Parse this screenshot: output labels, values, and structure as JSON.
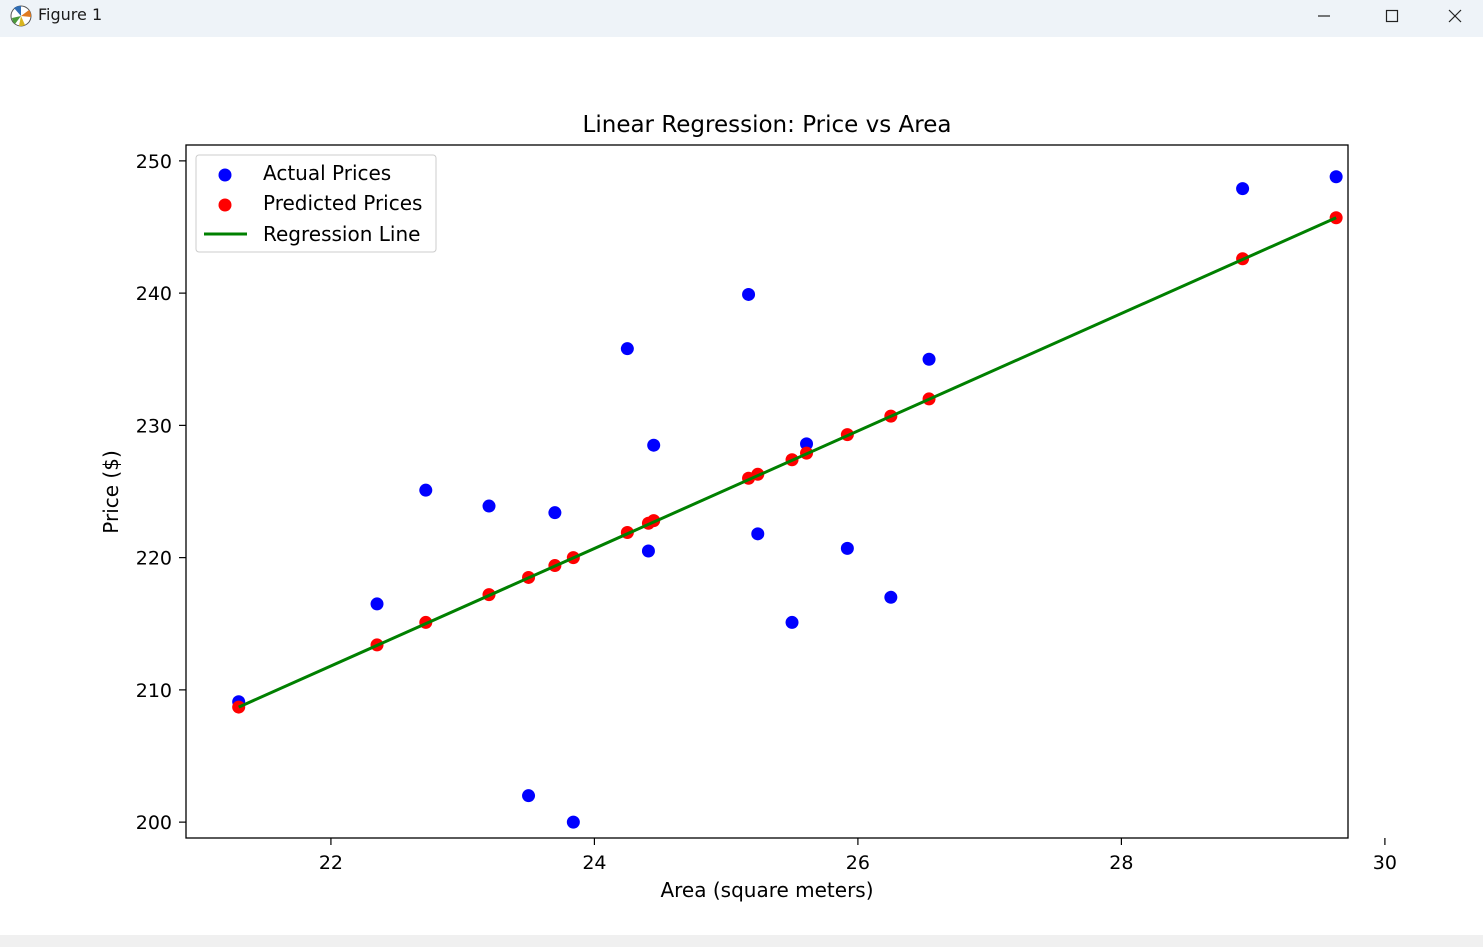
{
  "window": {
    "title": "Figure 1",
    "icon": "matplotlib-icon",
    "controls": [
      "minimize-icon",
      "maximize-icon",
      "close-icon"
    ]
  },
  "chart_data": {
    "type": "scatter",
    "title": "Linear Regression: Price vs Area",
    "xlabel": "Area (square meters)",
    "ylabel": "Price ($)",
    "xlim": [
      20.9,
      29.72
    ],
    "ylim": [
      198.8,
      251.2
    ],
    "xticks": [
      22,
      24,
      26,
      28,
      30
    ],
    "yticks": [
      200,
      210,
      220,
      230,
      240,
      250
    ],
    "grid": false,
    "legend_position": "upper-left",
    "series": [
      {
        "name": "Actual Prices",
        "kind": "scatter",
        "color": "#0000ff",
        "x": [
          21.3,
          22.35,
          22.72,
          23.2,
          23.5,
          23.7,
          23.84,
          24.25,
          24.41,
          24.45,
          25.17,
          25.24,
          25.5,
          25.61,
          25.92,
          26.25,
          26.54,
          28.92,
          29.63
        ],
        "y": [
          209.1,
          216.5,
          225.1,
          223.9,
          202.0,
          223.4,
          200.0,
          235.8,
          220.5,
          228.5,
          239.9,
          221.8,
          215.1,
          228.6,
          220.7,
          217.0,
          235.0,
          247.9,
          248.8
        ]
      },
      {
        "name": "Predicted Prices",
        "kind": "scatter",
        "color": "#ff0000",
        "x": [
          21.3,
          22.35,
          22.72,
          23.2,
          23.5,
          23.7,
          23.84,
          24.25,
          24.41,
          24.45,
          25.17,
          25.24,
          25.5,
          25.61,
          25.92,
          26.25,
          26.54,
          28.92,
          29.63
        ],
        "y": [
          208.7,
          213.4,
          215.1,
          217.2,
          218.5,
          219.4,
          220.0,
          221.9,
          222.6,
          222.8,
          226.0,
          226.3,
          227.4,
          227.9,
          229.3,
          230.7,
          232.0,
          242.6,
          245.7
        ]
      },
      {
        "name": "Regression Line",
        "kind": "line",
        "color": "#008000",
        "x": [
          21.3,
          29.63
        ],
        "y": [
          208.7,
          245.7
        ]
      }
    ]
  }
}
